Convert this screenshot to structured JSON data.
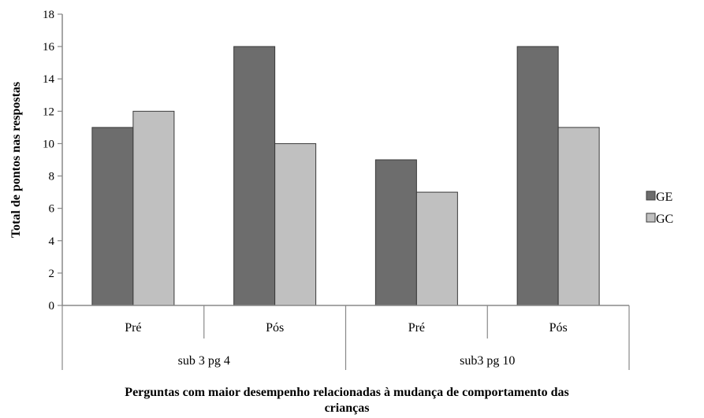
{
  "chart_data": {
    "type": "bar",
    "title": "",
    "xlabel": "Perguntas com maior desempenho relacionadas à mudança de comportamento das crianças",
    "xlabel_lines": [
      "Perguntas com maior desempenho relacionadas à mudança de comportamento das",
      "crianças"
    ],
    "ylabel": "Total de pontos nas respostas",
    "ylim": [
      0,
      18
    ],
    "yticks": [
      "0",
      "2",
      "4",
      "6",
      "8",
      "10",
      "12",
      "14",
      "16",
      "18"
    ],
    "grid": false,
    "legend_position": "right",
    "categories": [
      "Pré",
      "Pós",
      "Pré",
      "Pós"
    ],
    "groups": [
      {
        "label": "sub 3 pg 4",
        "span": 2
      },
      {
        "label": "sub3 pg 10",
        "span": 2
      }
    ],
    "series": [
      {
        "name": "GE",
        "values": [
          11,
          16,
          9,
          16
        ],
        "color": "#6d6d6d"
      },
      {
        "name": "GC",
        "values": [
          12,
          10,
          7,
          11
        ],
        "color": "#c0c0c0"
      }
    ]
  }
}
